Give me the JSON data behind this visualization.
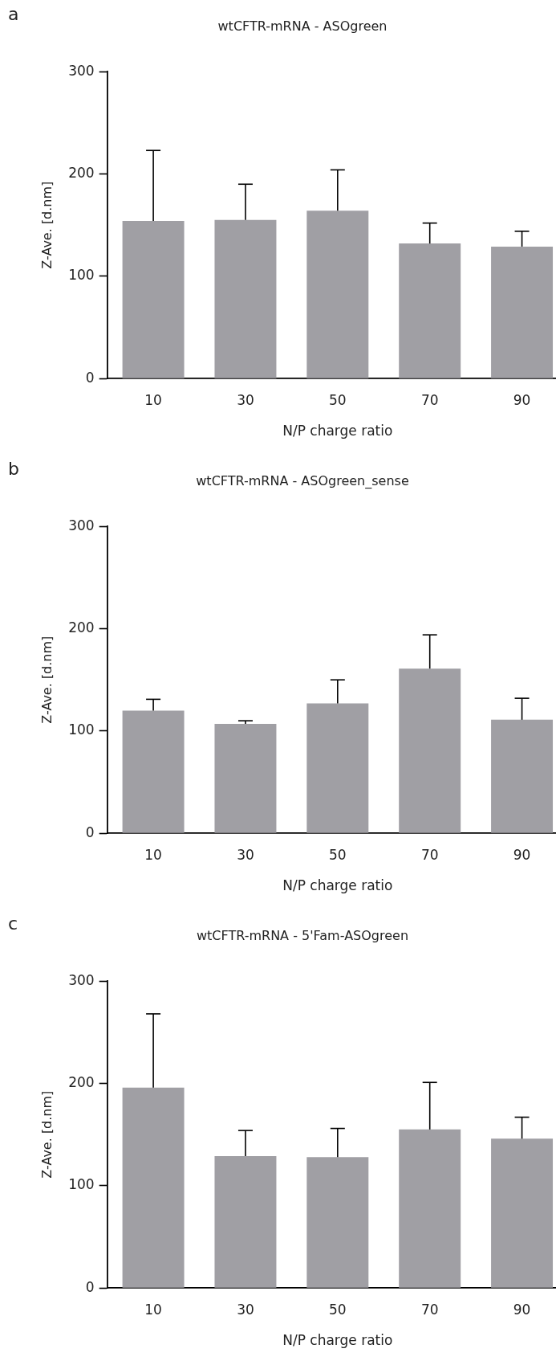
{
  "chart_data": [
    {
      "type": "bar",
      "title": "wtCFTR-mRNA - ASOgreen",
      "xlabel": "N/P charge ratio",
      "ylabel": "Z-Ave. [d.nm]",
      "annotations": [
        "a"
      ],
      "categories": [
        "10",
        "30",
        "50",
        "70",
        "90"
      ],
      "values": [
        154,
        155,
        164,
        132,
        129
      ],
      "errors": [
        [
          154,
          223
        ],
        [
          155,
          190
        ],
        [
          164,
          204
        ],
        [
          132,
          152
        ],
        [
          129,
          144
        ]
      ],
      "color": "#a09fa4",
      "ylim": [
        0,
        300
      ],
      "yticks": [
        0,
        100,
        200,
        300
      ],
      "grid": false
    },
    {
      "type": "bar",
      "title": "wtCFTR-mRNA - ASOgreen_sense",
      "xlabel": "N/P charge ratio",
      "ylabel": "Z-Ave. [d.nm]",
      "annotations": [
        "b"
      ],
      "categories": [
        "10",
        "30",
        "50",
        "70",
        "90"
      ],
      "values": [
        120,
        107,
        127,
        161,
        111
      ],
      "errors": [
        [
          120,
          131
        ],
        [
          107,
          110
        ],
        [
          127,
          150
        ],
        [
          161,
          194
        ],
        [
          111,
          132
        ]
      ],
      "color": "#a09fa4",
      "ylim": [
        0,
        300
      ],
      "yticks": [
        0,
        100,
        200,
        300
      ],
      "grid": false
    },
    {
      "type": "bar",
      "title": "wtCFTR-mRNA - 5'Fam-ASOgreen",
      "xlabel": "N/P charge ratio",
      "ylabel": "Z-Ave. [d.nm]",
      "annotations": [
        "c"
      ],
      "categories": [
        "10",
        "30",
        "50",
        "70",
        "90"
      ],
      "values": [
        196,
        129,
        128,
        155,
        146
      ],
      "errors": [
        [
          196,
          268
        ],
        [
          129,
          154
        ],
        [
          128,
          156
        ],
        [
          155,
          201
        ],
        [
          146,
          167
        ]
      ],
      "color": "#a09fa4",
      "ylim": [
        0,
        300
      ],
      "yticks": [
        0,
        100,
        200,
        300
      ],
      "grid": false
    }
  ]
}
